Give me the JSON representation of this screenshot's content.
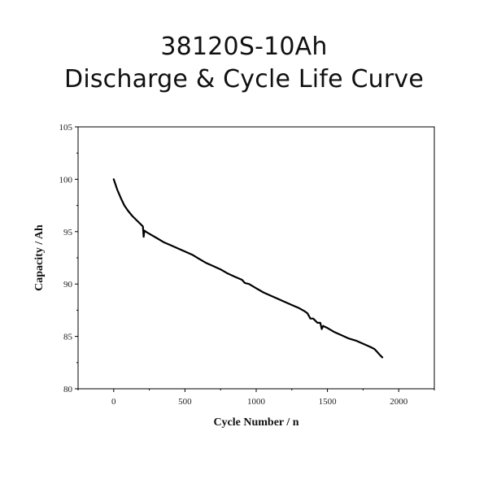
{
  "chart_data": {
    "type": "line",
    "title_lines": [
      "38120S-10Ah",
      "Discharge & Cycle Life Curve"
    ],
    "xlabel": "Cycle Number / n",
    "ylabel": "Capacity / Ah",
    "xlim": [
      -250,
      2250
    ],
    "ylim": [
      80,
      105
    ],
    "xticks": [
      0,
      500,
      1000,
      1500,
      2000
    ],
    "yticks": [
      80,
      85,
      90,
      95,
      100,
      105
    ],
    "grid": false,
    "series": [
      {
        "name": "Capacity",
        "color": "#000000",
        "x": [
          0,
          10,
          25,
          50,
          75,
          100,
          130,
          160,
          190,
          205,
          210,
          215,
          225,
          250,
          300,
          350,
          400,
          450,
          500,
          550,
          600,
          650,
          700,
          750,
          800,
          850,
          900,
          920,
          950,
          1000,
          1050,
          1100,
          1150,
          1200,
          1250,
          1300,
          1340,
          1360,
          1380,
          1400,
          1430,
          1450,
          1460,
          1470,
          1500,
          1550,
          1600,
          1650,
          1700,
          1750,
          1800,
          1830,
          1850,
          1870,
          1885
        ],
        "y": [
          100.0,
          99.6,
          99.0,
          98.2,
          97.5,
          97.0,
          96.5,
          96.1,
          95.7,
          95.5,
          94.5,
          95.1,
          95.0,
          94.8,
          94.4,
          94.0,
          93.7,
          93.4,
          93.1,
          92.8,
          92.4,
          92.0,
          91.7,
          91.4,
          91.0,
          90.7,
          90.4,
          90.1,
          90.0,
          89.6,
          89.2,
          88.9,
          88.6,
          88.3,
          88.0,
          87.7,
          87.4,
          87.2,
          86.7,
          86.7,
          86.3,
          86.3,
          85.7,
          86.0,
          85.8,
          85.4,
          85.1,
          84.8,
          84.6,
          84.3,
          84.0,
          83.8,
          83.5,
          83.2,
          83.0
        ]
      }
    ]
  }
}
